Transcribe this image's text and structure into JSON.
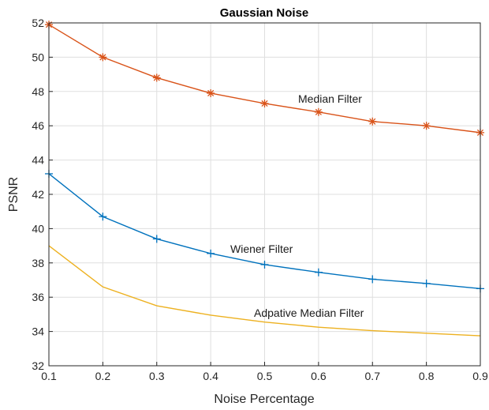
{
  "chart_data": {
    "type": "line",
    "title": "Gaussian Noise",
    "xlabel": "Noise Percentage",
    "ylabel": "PSNR",
    "xlim": [
      0.1,
      0.9
    ],
    "ylim": [
      32,
      52
    ],
    "xticks": [
      0.1,
      0.2,
      0.3,
      0.4,
      0.5,
      0.6,
      0.7,
      0.8,
      0.9
    ],
    "yticks": [
      32,
      34,
      36,
      38,
      40,
      42,
      44,
      46,
      48,
      50,
      52
    ],
    "xtick_labels": [
      "0.1",
      "0.2",
      "0.3",
      "0.4",
      "0.5",
      "0.6",
      "0.7",
      "0.8",
      "0.9"
    ],
    "ytick_labels": [
      "32",
      "34",
      "36",
      "38",
      "40",
      "42",
      "44",
      "46",
      "48",
      "50",
      "52"
    ],
    "grid": true,
    "x": [
      0.1,
      0.2,
      0.3,
      0.4,
      0.5,
      0.6,
      0.7,
      0.8,
      0.9
    ],
    "series": [
      {
        "name": "Median Filter",
        "color": "#D95319",
        "marker": "asterisk",
        "values": [
          51.9,
          50.0,
          48.8,
          47.9,
          47.3,
          46.8,
          46.25,
          46.0,
          45.6
        ]
      },
      {
        "name": "Wiener Filter",
        "color": "#0072BD",
        "marker": "plus",
        "values": [
          43.2,
          40.7,
          39.4,
          38.55,
          37.9,
          37.45,
          37.05,
          36.8,
          36.5
        ]
      },
      {
        "name": "Adpative Median Filter",
        "color": "#EDB120",
        "marker": "none",
        "values": [
          39.0,
          36.6,
          35.5,
          34.95,
          34.55,
          34.25,
          34.05,
          33.9,
          33.75
        ]
      }
    ],
    "annotations": [
      {
        "text": "Median Filter",
        "series": "Median Filter"
      },
      {
        "text": "Wiener Filter",
        "series": "Wiener Filter"
      },
      {
        "text": "Adpative Median Filter",
        "series": "Adpative Median Filter"
      }
    ]
  }
}
